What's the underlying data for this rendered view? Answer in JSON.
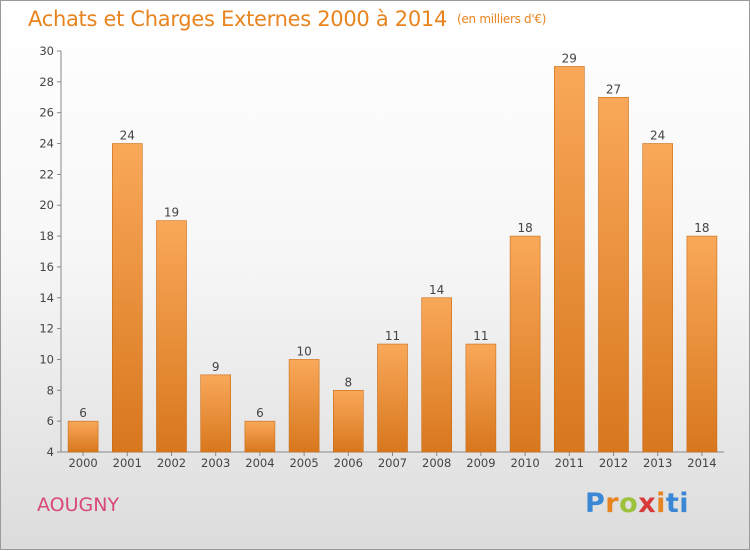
{
  "title": "Achats et Charges Externes 2000 à 2014",
  "unit": "(en milliers d'€)",
  "commune": "AOUGNY",
  "brand": {
    "letters": [
      "P",
      "r",
      "o",
      "x",
      "i",
      "ti"
    ],
    "colors": [
      "#3a87d6",
      "#e8841f",
      "#9bc23a",
      "#d83a3a",
      "#e8841f",
      "#3a87d6"
    ]
  },
  "colors": {
    "bar_top": "#f9a85a",
    "bar_bottom": "#d8771d",
    "title": "#e8841f",
    "commune": "#d7487a"
  },
  "chart_data": {
    "type": "bar",
    "title": "Achats et Charges Externes 2000 à 2014",
    "subtitle": "(en milliers d'€)",
    "xlabel": "",
    "ylabel": "",
    "categories": [
      "2000",
      "2001",
      "2002",
      "2003",
      "2004",
      "2005",
      "2006",
      "2007",
      "2008",
      "2009",
      "2010",
      "2011",
      "2012",
      "2013",
      "2014"
    ],
    "values": [
      6,
      24,
      19,
      9,
      6,
      10,
      8,
      11,
      14,
      11,
      18,
      29,
      27,
      24,
      18
    ],
    "ylim": [
      4,
      30
    ],
    "yticks": [
      4,
      6,
      8,
      10,
      12,
      14,
      16,
      18,
      20,
      22,
      24,
      26,
      28,
      30
    ],
    "grid": false,
    "legend": "none"
  }
}
